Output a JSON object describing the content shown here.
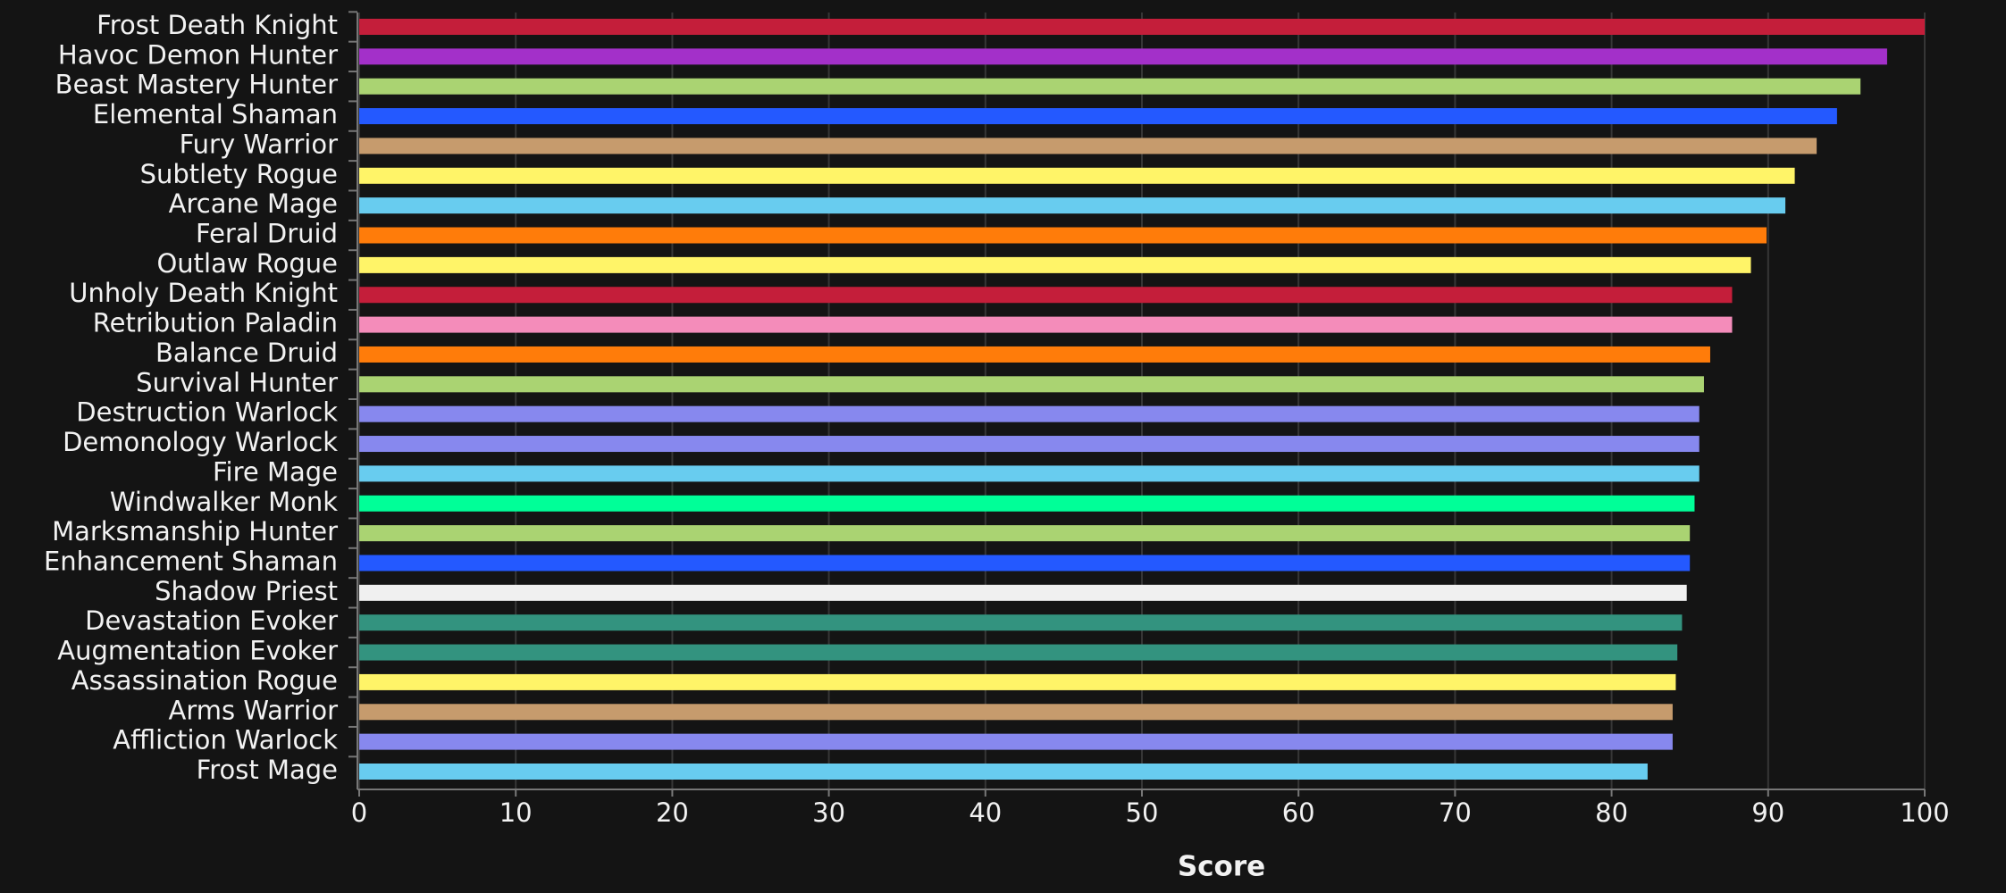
{
  "chart_data": {
    "type": "bar",
    "orientation": "horizontal",
    "x_label": "Score",
    "categories": [
      "Frost Death Knight",
      "Havoc Demon Hunter",
      "Beast Mastery Hunter",
      "Elemental Shaman",
      "Fury Warrior",
      "Subtlety Rogue",
      "Arcane Mage",
      "Feral Druid",
      "Outlaw Rogue",
      "Unholy Death Knight",
      "Retribution Paladin",
      "Balance Druid",
      "Survival Hunter",
      "Destruction Warlock",
      "Demonology Warlock",
      "Fire Mage",
      "Windwalker Monk",
      "Marksmanship Hunter",
      "Enhancement Shaman",
      "Shadow Priest",
      "Devastation Evoker",
      "Augmentation Evoker",
      "Assassination Rogue",
      "Arms Warrior",
      "Affliction Warlock",
      "Frost Mage"
    ],
    "values": [
      100,
      97.6,
      95.9,
      94.4,
      93.1,
      91.7,
      91.1,
      89.9,
      88.9,
      87.7,
      87.7,
      86.3,
      85.9,
      85.6,
      85.6,
      85.6,
      85.3,
      85.0,
      85.0,
      84.8,
      84.5,
      84.2,
      84.1,
      83.9,
      83.9,
      82.3
    ],
    "colors": [
      "#c41e3a",
      "#a330c9",
      "#aad372",
      "#2459ff",
      "#c69b6d",
      "#fff468",
      "#68ccef",
      "#ff7c0a",
      "#fff468",
      "#c41e3a",
      "#f48cba",
      "#ff7c0a",
      "#aad372",
      "#8788ee",
      "#8788ee",
      "#68ccef",
      "#00ff98",
      "#aad372",
      "#2459ff",
      "#f0f0f0",
      "#33937f",
      "#33937f",
      "#fff468",
      "#c69b6d",
      "#8788ee",
      "#68ccef"
    ],
    "xlim": [
      0,
      100
    ],
    "xticks": [
      0,
      10,
      20,
      30,
      40,
      50,
      60,
      70,
      80,
      90,
      100
    ],
    "grid": true
  }
}
